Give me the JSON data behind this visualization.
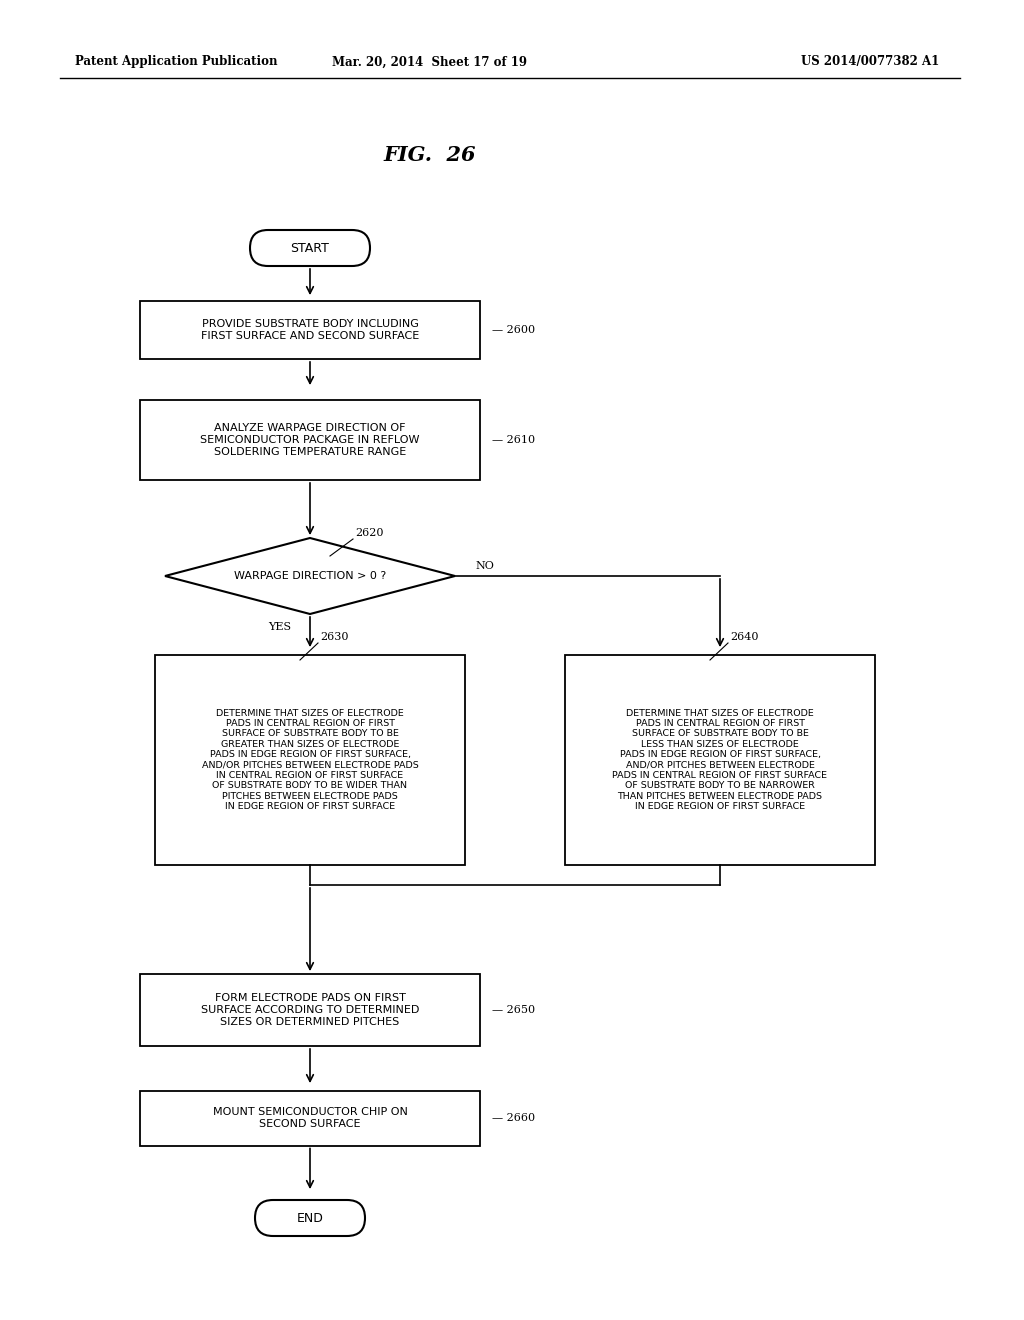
{
  "title": "FIG.  26",
  "header_left": "Patent Application Publication",
  "header_center": "Mar. 20, 2014  Sheet 17 of 19",
  "header_right": "US 2014/0077382 A1",
  "bg_color": "#ffffff",
  "start_label": "START",
  "end_label": "END",
  "box2600_text": "PROVIDE SUBSTRATE BODY INCLUDING\nFIRST SURFACE AND SECOND SURFACE",
  "box2600_ref": "2600",
  "box2610_text": "ANALYZE WARPAGE DIRECTION OF\nSEMICONDUCTOR PACKAGE IN REFLOW\nSOLDERING TEMPERATURE RANGE",
  "box2610_ref": "2610",
  "diamond_text": "WARPAGE DIRECTION > 0 ?",
  "diamond_ref": "2620",
  "yes_label": "YES",
  "no_label": "NO",
  "box2630_ref": "2630",
  "box2630_text": "DETERMINE THAT SIZES OF ELECTRODE\nPADS IN CENTRAL REGION OF FIRST\nSURFACE OF SUBSTRATE BODY TO BE\nGREATER THAN SIZES OF ELECTRODE\nPADS IN EDGE REGION OF FIRST SURFACE,\nAND/OR PITCHES BETWEEN ELECTRODE PADS\nIN CENTRAL REGION OF FIRST SURFACE\nOF SUBSTRATE BODY TO BE WIDER THAN\nPITCHES BETWEEN ELECTRODE PADS\nIN EDGE REGION OF FIRST SURFACE",
  "box2640_ref": "2640",
  "box2640_text": "DETERMINE THAT SIZES OF ELECTRODE\nPADS IN CENTRAL REGION OF FIRST\nSURFACE OF SUBSTRATE BODY TO BE\nLESS THAN SIZES OF ELECTRODE\nPADS IN EDGE REGION OF FIRST SURFACE,\nAND/OR PITCHES BETWEEN ELECTRODE\nPADS IN CENTRAL REGION OF FIRST SURFACE\nOF SUBSTRATE BODY TO BE NARROWER\nTHAN PITCHES BETWEEN ELECTRODE PADS\nIN EDGE REGION OF FIRST SURFACE",
  "box2650_text": "FORM ELECTRODE PADS ON FIRST\nSURFACE ACCORDING TO DETERMINED\nSIZES OR DETERMINED PITCHES",
  "box2650_ref": "2650",
  "box2660_text": "MOUNT SEMICONDUCTOR CHIP ON\nSECOND SURFACE",
  "box2660_ref": "2660"
}
